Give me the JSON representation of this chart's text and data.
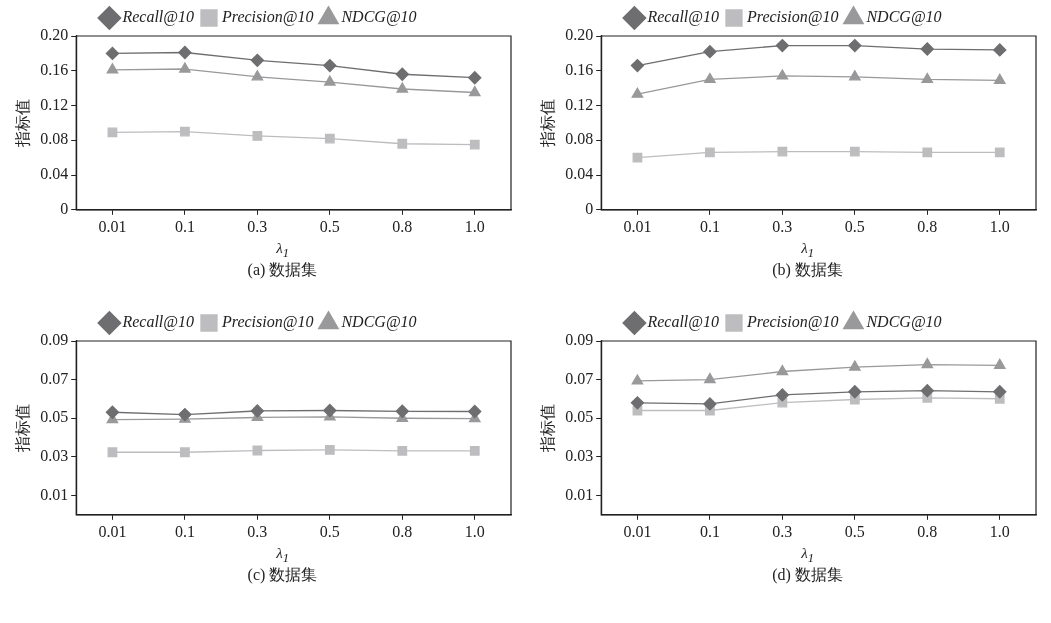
{
  "chart_data": [
    {
      "type": "line",
      "title": "(a) 数据集",
      "xlabel": "λ$_{1}$",
      "ylabel": "指标值",
      "categories": [
        "0.01",
        "0.1",
        "0.3",
        "0.5",
        "0.8",
        "1.0"
      ],
      "ylim": [
        0,
        0.2
      ],
      "yticks": [
        0,
        0.04,
        0.08,
        0.12,
        0.16,
        {
          "value": 0.2,
          "label": "0.20"
        }
      ],
      "grid": false,
      "legend": "top",
      "series": [
        {
          "name": "Recall@10",
          "color": "#6e6e70",
          "marker": "diamond",
          "values": [
            0.18,
            0.181,
            0.172,
            0.166,
            0.156,
            0.152
          ]
        },
        {
          "name": "Precision@10",
          "color": "#bdbdc0",
          "marker": "square",
          "values": [
            0.089,
            0.09,
            0.085,
            0.082,
            0.076,
            0.075
          ]
        },
        {
          "name": "NDCG@10",
          "color": "#99999b",
          "marker": "triangle",
          "values": [
            0.161,
            0.162,
            0.153,
            0.147,
            0.139,
            0.135
          ]
        }
      ]
    },
    {
      "type": "line",
      "title": "(b) 数据集",
      "xlabel": "λ$_{1}$",
      "ylabel": "指标值",
      "categories": [
        "0.01",
        "0.1",
        "0.3",
        "0.5",
        "0.8",
        "1.0"
      ],
      "ylim": [
        0,
        0.2
      ],
      "yticks": [
        0,
        0.04,
        0.08,
        0.12,
        0.16,
        {
          "value": 0.2,
          "label": "0.20"
        }
      ],
      "grid": false,
      "legend": "top",
      "series": [
        {
          "name": "Recall@10",
          "color": "#6e6e70",
          "marker": "diamond",
          "values": [
            0.166,
            0.182,
            0.189,
            0.189,
            0.185,
            0.184
          ]
        },
        {
          "name": "Precision@10",
          "color": "#bdbdc0",
          "marker": "square",
          "values": [
            0.06,
            0.066,
            0.067,
            0.067,
            0.066,
            0.066
          ]
        },
        {
          "name": "NDCG@10",
          "color": "#99999b",
          "marker": "triangle",
          "values": [
            0.133,
            0.15,
            0.154,
            0.153,
            0.15,
            0.149
          ]
        }
      ]
    },
    {
      "type": "line",
      "title": "(c) 数据集",
      "xlabel": "λ$_{1}$",
      "ylabel": "指标值",
      "categories": [
        "0.01",
        "0.1",
        "0.3",
        "0.5",
        "0.8",
        "1.0"
      ],
      "ylim": [
        0,
        0.09
      ],
      "yticks": [
        0.01,
        0.03,
        0.05,
        0.07,
        0.09
      ],
      "grid": false,
      "legend": "top",
      "series": [
        {
          "name": "Recall@10",
          "color": "#6e6e70",
          "marker": "diamond",
          "values": [
            0.0531,
            0.0519,
            0.0538,
            0.054,
            0.0536,
            0.0535
          ]
        },
        {
          "name": "Precision@10",
          "color": "#bdbdc0",
          "marker": "square",
          "values": [
            0.0324,
            0.0324,
            0.0333,
            0.0336,
            0.0331,
            0.0331
          ]
        },
        {
          "name": "NDCG@10",
          "color": "#99999b",
          "marker": "triangle",
          "values": [
            0.0493,
            0.0495,
            0.0504,
            0.0507,
            0.05,
            0.0498
          ]
        }
      ]
    },
    {
      "type": "line",
      "title": "(d) 数据集",
      "xlabel": "λ$_{1}$",
      "ylabel": "指标值",
      "categories": [
        "0.01",
        "0.1",
        "0.3",
        "0.5",
        "0.8",
        "1.0"
      ],
      "ylim": [
        0,
        0.09
      ],
      "yticks": [
        0.01,
        0.03,
        0.05,
        0.07,
        0.09
      ],
      "grid": false,
      "legend": "top",
      "series": [
        {
          "name": "Recall@10",
          "color": "#6e6e70",
          "marker": "diamond",
          "values": [
            0.058,
            0.0574,
            0.0621,
            0.0637,
            0.0643,
            0.0637
          ]
        },
        {
          "name": "Precision@10",
          "color": "#bdbdc0",
          "marker": "square",
          "values": [
            0.054,
            0.054,
            0.0581,
            0.0597,
            0.0606,
            0.0601
          ]
        },
        {
          "name": "NDCG@10",
          "color": "#99999b",
          "marker": "triangle",
          "values": [
            0.0693,
            0.07,
            0.0742,
            0.0765,
            0.0778,
            0.0774
          ]
        }
      ]
    }
  ]
}
